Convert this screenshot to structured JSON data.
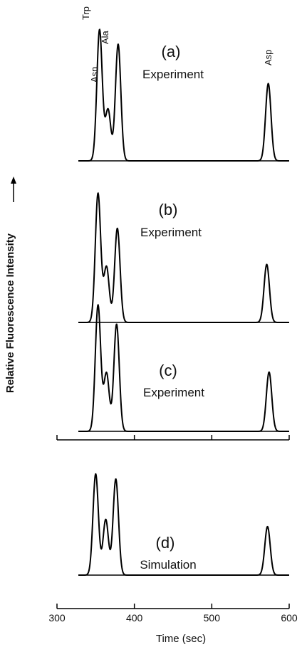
{
  "chart_data": {
    "type": "line",
    "ylabel": "Relative Fluorescence Intensity",
    "xlabel": "Time (sec)",
    "xlim": [
      300,
      600
    ],
    "xticks": [
      300,
      400,
      500,
      600
    ],
    "peak_width_sec": 3.5,
    "panels": [
      {
        "label": "(a)",
        "kind": "Experiment",
        "peaks": [
          {
            "name": "Trp",
            "x": 355,
            "height": 1.0
          },
          {
            "name": "Asn",
            "x": 366,
            "height": 0.39
          },
          {
            "name": "Ala",
            "x": 379,
            "height": 0.89
          },
          {
            "name": "Asp",
            "x": 573,
            "height": 0.59
          }
        ]
      },
      {
        "label": "(b)",
        "kind": "Experiment",
        "peaks": [
          {
            "name": "Trp",
            "x": 353,
            "height": 1.0
          },
          {
            "name": "Asn",
            "x": 364,
            "height": 0.43
          },
          {
            "name": "Ala",
            "x": 378,
            "height": 0.73
          },
          {
            "name": "Asp",
            "x": 571,
            "height": 0.45
          }
        ]
      },
      {
        "label": "(c)",
        "kind": "Experiment",
        "peaks": [
          {
            "name": "Trp",
            "x": 353,
            "height": 1.0
          },
          {
            "name": "Asn",
            "x": 364,
            "height": 0.46
          },
          {
            "name": "Ala",
            "x": 377,
            "height": 0.85
          },
          {
            "name": "Asp",
            "x": 574,
            "height": 0.47
          }
        ]
      },
      {
        "label": "(d)",
        "kind": "Simulation",
        "peaks": [
          {
            "name": "Trp",
            "x": 350,
            "height": 1.0
          },
          {
            "name": "Asn",
            "x": 363,
            "height": 0.55
          },
          {
            "name": "Ala",
            "x": 376,
            "height": 0.95
          },
          {
            "name": "Asp",
            "x": 572,
            "height": 0.48
          }
        ]
      }
    ],
    "peak_labels": [
      "Trp",
      "Asn",
      "Ala",
      "Asp"
    ]
  }
}
